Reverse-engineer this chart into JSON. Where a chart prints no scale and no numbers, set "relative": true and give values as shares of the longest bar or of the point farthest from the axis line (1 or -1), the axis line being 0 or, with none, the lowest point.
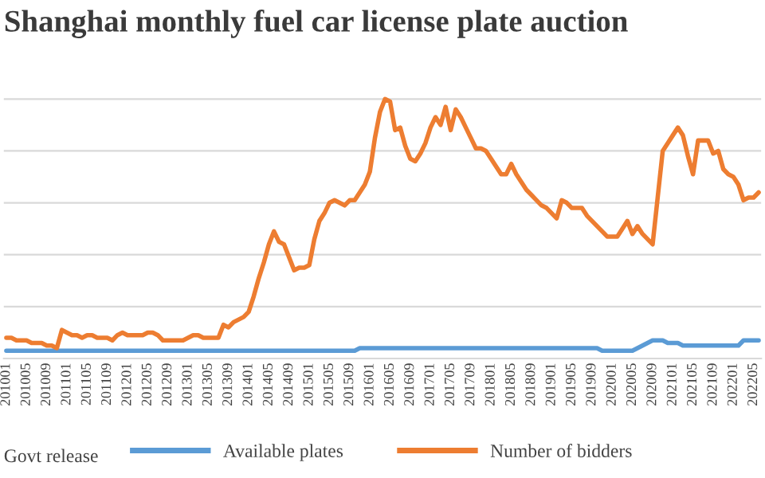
{
  "chart_data": {
    "type": "line",
    "title": "Shanghai monthly fuel car license plate auction",
    "relative": true,
    "grid": "y",
    "legend": "bottom",
    "annotations": [
      "Govt release"
    ],
    "categories": [
      "201001",
      null,
      null,
      null,
      "201005",
      null,
      null,
      null,
      "201009",
      null,
      null,
      null,
      "201101",
      null,
      null,
      null,
      "201105",
      null,
      null,
      null,
      "201109",
      null,
      null,
      null,
      "201201",
      null,
      null,
      null,
      "201205",
      null,
      null,
      null,
      "201209",
      null,
      null,
      null,
      "201301",
      null,
      null,
      null,
      "201305",
      null,
      null,
      null,
      "201309",
      null,
      null,
      null,
      "201401",
      null,
      null,
      null,
      "201405",
      null,
      null,
      null,
      "201409",
      null,
      null,
      null,
      "201501",
      null,
      null,
      null,
      "201505",
      null,
      null,
      null,
      "201509",
      null,
      null,
      null,
      "201601",
      null,
      null,
      null,
      "201605",
      null,
      null,
      null,
      "201609",
      null,
      null,
      null,
      "201701",
      null,
      null,
      null,
      "201705",
      null,
      null,
      null,
      "201709",
      null,
      null,
      null,
      "201801",
      null,
      null,
      null,
      "201805",
      null,
      null,
      null,
      "201809",
      null,
      null,
      null,
      "201901",
      null,
      null,
      null,
      "201905",
      null,
      null,
      null,
      "201909",
      null,
      null,
      null,
      "202001",
      null,
      null,
      null,
      "202005",
      null,
      null,
      null,
      "202009",
      null,
      null,
      null,
      "202101",
      null,
      null,
      null,
      "202105",
      null,
      null,
      null,
      "202109",
      null,
      null,
      null,
      "202201",
      null,
      null,
      null,
      "202205",
      null
    ],
    "series": [
      {
        "name": "Available plates",
        "color": "#5b9bd5",
        "values": [
          0.03,
          0.03,
          0.03,
          0.03,
          0.03,
          0.03,
          0.03,
          0.03,
          0.03,
          0.03,
          0.03,
          0.03,
          0.03,
          0.03,
          0.03,
          0.03,
          0.03,
          0.03,
          0.03,
          0.03,
          0.03,
          0.03,
          0.03,
          0.03,
          0.03,
          0.03,
          0.03,
          0.03,
          0.03,
          0.03,
          0.03,
          0.03,
          0.03,
          0.03,
          0.03,
          0.03,
          0.03,
          0.03,
          0.03,
          0.03,
          0.03,
          0.03,
          0.03,
          0.03,
          0.03,
          0.03,
          0.03,
          0.03,
          0.03,
          0.03,
          0.03,
          0.03,
          0.03,
          0.03,
          0.03,
          0.03,
          0.03,
          0.03,
          0.03,
          0.03,
          0.03,
          0.03,
          0.03,
          0.03,
          0.03,
          0.03,
          0.03,
          0.03,
          0.03,
          0.03,
          0.04,
          0.04,
          0.04,
          0.04,
          0.04,
          0.04,
          0.04,
          0.04,
          0.04,
          0.04,
          0.04,
          0.04,
          0.04,
          0.04,
          0.04,
          0.04,
          0.04,
          0.04,
          0.04,
          0.04,
          0.04,
          0.04,
          0.04,
          0.04,
          0.04,
          0.04,
          0.04,
          0.04,
          0.04,
          0.04,
          0.04,
          0.04,
          0.04,
          0.04,
          0.04,
          0.04,
          0.04,
          0.04,
          0.04,
          0.04,
          0.04,
          0.04,
          0.04,
          0.04,
          0.04,
          0.04,
          0.04,
          0.04,
          0.03,
          0.03,
          0.03,
          0.03,
          0.03,
          0.03,
          0.03,
          0.04,
          0.05,
          0.06,
          0.07,
          0.07,
          0.07,
          0.06,
          0.06,
          0.06,
          0.05,
          0.05,
          0.05,
          0.05,
          0.05,
          0.05,
          0.05,
          0.05,
          0.05,
          0.05,
          0.05,
          0.05,
          0.07,
          0.07,
          0.07,
          0.07
        ]
      },
      {
        "name": "Number of bidders",
        "color": "#ed7d31",
        "values": [
          0.08,
          0.08,
          0.07,
          0.07,
          0.07,
          0.06,
          0.06,
          0.06,
          0.05,
          0.05,
          0.04,
          0.11,
          0.1,
          0.09,
          0.09,
          0.08,
          0.09,
          0.09,
          0.08,
          0.08,
          0.08,
          0.07,
          0.09,
          0.1,
          0.09,
          0.09,
          0.09,
          0.09,
          0.1,
          0.1,
          0.09,
          0.07,
          0.07,
          0.07,
          0.07,
          0.07,
          0.08,
          0.09,
          0.09,
          0.08,
          0.08,
          0.08,
          0.08,
          0.13,
          0.12,
          0.14,
          0.15,
          0.16,
          0.18,
          0.24,
          0.31,
          0.37,
          0.44,
          0.49,
          0.45,
          0.44,
          0.39,
          0.34,
          0.35,
          0.35,
          0.36,
          0.46,
          0.53,
          0.56,
          0.6,
          0.61,
          0.6,
          0.59,
          0.61,
          0.61,
          0.64,
          0.67,
          0.72,
          0.85,
          0.95,
          1.0,
          0.99,
          0.88,
          0.89,
          0.82,
          0.77,
          0.76,
          0.79,
          0.83,
          0.89,
          0.93,
          0.9,
          0.97,
          0.88,
          0.96,
          0.93,
          0.89,
          0.85,
          0.81,
          0.81,
          0.8,
          0.77,
          0.74,
          0.71,
          0.71,
          0.75,
          0.71,
          0.68,
          0.65,
          0.63,
          0.61,
          0.59,
          0.58,
          0.56,
          0.54,
          0.61,
          0.6,
          0.58,
          0.58,
          0.58,
          0.55,
          0.53,
          0.51,
          0.49,
          0.47,
          0.47,
          0.47,
          0.5,
          0.53,
          0.48,
          0.51,
          0.48,
          0.46,
          0.44,
          0.62,
          0.8,
          0.83,
          0.86,
          0.89,
          0.86,
          0.78,
          0.71,
          0.84,
          0.84,
          0.84,
          0.79,
          0.8,
          0.73,
          0.71,
          0.7,
          0.67,
          0.61,
          0.62,
          0.62,
          0.64
        ]
      }
    ]
  }
}
